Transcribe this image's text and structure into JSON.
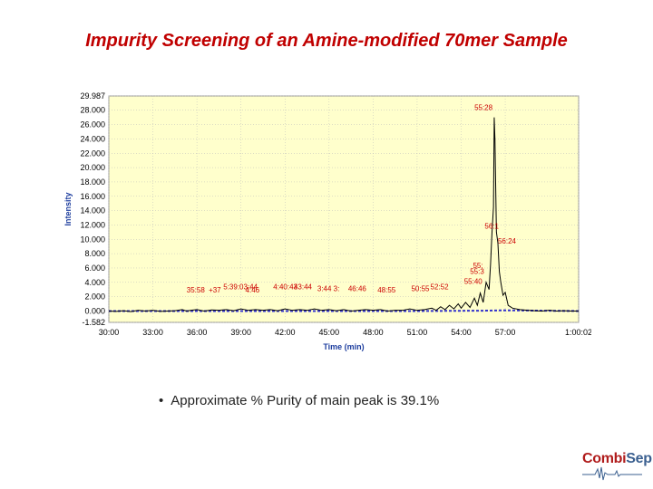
{
  "slide": {
    "title": "Impurity Screening of an Amine-modified 70mer Sample",
    "bullet": "Approximate % Purity of main peak is 39.1%"
  },
  "logo": {
    "brand_part1": "Combi",
    "brand_part2": "Sep",
    "colors": {
      "primary": "#b01c1c",
      "secondary": "#3a5f8f"
    }
  },
  "chart_data": {
    "type": "line",
    "title": "",
    "xlabel": "Time (min)",
    "ylabel": "Intensity",
    "xlim": [
      30,
      62
    ],
    "ylim": [
      -1.582,
      29.987
    ],
    "x_tick_values": [
      30,
      33,
      36,
      39,
      42,
      45,
      48,
      51,
      54,
      57,
      62
    ],
    "x_tick_labels": [
      "30:00",
      "33:00",
      "36:00",
      "39:00",
      "42:00",
      "45:00",
      "48:00",
      "51:00",
      "54:00",
      "57:00",
      "1:00:02"
    ],
    "y_tick_values": [
      29.987,
      28,
      26,
      24,
      22,
      20,
      18,
      16,
      14,
      12,
      10,
      8,
      6,
      4,
      2,
      0,
      -1.582
    ],
    "y_tick_labels": [
      "29.987",
      "28.000",
      "26.000",
      "24.000",
      "22.000",
      "20.000",
      "18.000",
      "16.000",
      "14.000",
      "12.000",
      "10.000",
      "8.000",
      "6.000",
      "4.000",
      "2.000",
      "0.000",
      "-1.582"
    ],
    "grid": true,
    "colors": {
      "plot_bg": "#ffffcc",
      "grid": "#bbbbbb",
      "trace": "#000000",
      "baseline": "#3333cc",
      "annotation": "#cc0000"
    },
    "series": [
      {
        "values": [
          [
            30.0,
            0.0
          ],
          [
            30.5,
            -0.05
          ],
          [
            31.0,
            0.05
          ],
          [
            31.5,
            -0.08
          ],
          [
            32.0,
            0.1
          ],
          [
            32.5,
            0.0
          ],
          [
            33.0,
            0.1
          ],
          [
            33.5,
            -0.05
          ],
          [
            34.0,
            0.0
          ],
          [
            34.5,
            0.05
          ],
          [
            35.0,
            0.2
          ],
          [
            35.3,
            0.0
          ],
          [
            35.6,
            0.1
          ],
          [
            36.0,
            0.2
          ],
          [
            36.5,
            0.0
          ],
          [
            37.0,
            0.15
          ],
          [
            37.5,
            0.1
          ],
          [
            38.0,
            0.2
          ],
          [
            38.5,
            0.05
          ],
          [
            39.0,
            0.3
          ],
          [
            39.5,
            0.1
          ],
          [
            40.0,
            0.2
          ],
          [
            40.5,
            0.1
          ],
          [
            41.0,
            0.2
          ],
          [
            41.5,
            0.05
          ],
          [
            42.0,
            0.3
          ],
          [
            42.5,
            0.1
          ],
          [
            43.0,
            0.2
          ],
          [
            43.5,
            0.1
          ],
          [
            44.0,
            0.3
          ],
          [
            44.5,
            0.1
          ],
          [
            45.0,
            0.2
          ],
          [
            45.5,
            0.05
          ],
          [
            46.0,
            0.2
          ],
          [
            46.5,
            0.0
          ],
          [
            47.0,
            0.1
          ],
          [
            47.5,
            0.2
          ],
          [
            48.0,
            0.1
          ],
          [
            48.5,
            0.2
          ],
          [
            49.0,
            0.0
          ],
          [
            49.5,
            0.1
          ],
          [
            50.0,
            0.1
          ],
          [
            50.5,
            0.3
          ],
          [
            51.0,
            0.1
          ],
          [
            51.5,
            0.2
          ],
          [
            52.0,
            0.4
          ],
          [
            52.3,
            0.1
          ],
          [
            52.6,
            0.6
          ],
          [
            52.9,
            0.2
          ],
          [
            53.2,
            0.8
          ],
          [
            53.5,
            0.3
          ],
          [
            53.8,
            1.0
          ],
          [
            54.0,
            0.4
          ],
          [
            54.3,
            1.2
          ],
          [
            54.6,
            0.5
          ],
          [
            54.9,
            1.8
          ],
          [
            55.1,
            0.8
          ],
          [
            55.3,
            2.5
          ],
          [
            55.5,
            1.2
          ],
          [
            55.7,
            4.0
          ],
          [
            55.9,
            3.0
          ],
          [
            56.0,
            6.5
          ],
          [
            56.1,
            11.0
          ],
          [
            56.2,
            14.5
          ],
          [
            56.25,
            27.0
          ],
          [
            56.3,
            24.0
          ],
          [
            56.4,
            11.0
          ],
          [
            56.5,
            9.5
          ],
          [
            56.6,
            5.5
          ],
          [
            56.7,
            4.0
          ],
          [
            56.85,
            2.2
          ],
          [
            57.0,
            2.6
          ],
          [
            57.2,
            0.8
          ],
          [
            57.5,
            0.4
          ],
          [
            58.0,
            0.2
          ],
          [
            58.5,
            0.1
          ],
          [
            59.0,
            0.05
          ],
          [
            59.5,
            0.0
          ],
          [
            60.0,
            0.1
          ],
          [
            60.5,
            0.0
          ],
          [
            61.0,
            0.05
          ],
          [
            61.5,
            0.0
          ],
          [
            62.0,
            0.0
          ]
        ]
      },
      {
        "values": [
          [
            30.0,
            0.0
          ],
          [
            51.0,
            0.0
          ],
          [
            55.5,
            0.05
          ],
          [
            57.0,
            0.1
          ],
          [
            62.0,
            0.0
          ]
        ]
      }
    ],
    "annotations": [
      {
        "text": "55:28",
        "x": 54.9,
        "y": 28.0
      },
      {
        "text": "56:1",
        "x": 55.6,
        "y": 11.5
      },
      {
        "text": "56:24",
        "x": 56.5,
        "y": 9.4
      },
      {
        "text": "55:",
        "x": 54.8,
        "y": 6.0
      },
      {
        "text": "55:3",
        "x": 54.6,
        "y": 5.2
      },
      {
        "text": "55:40",
        "x": 54.2,
        "y": 3.8
      },
      {
        "text": "35:58",
        "x": 35.3,
        "y": 2.6
      },
      {
        "text": "+37",
        "x": 36.8,
        "y": 2.6
      },
      {
        "text": "5:39:03:44",
        "x": 37.8,
        "y": 3.0
      },
      {
        "text": "4:46",
        "x": 39.3,
        "y": 2.6
      },
      {
        "text": "4:40:43",
        "x": 41.2,
        "y": 3.0
      },
      {
        "text": "43:44",
        "x": 42.6,
        "y": 3.0
      },
      {
        "text": "3:44",
        "x": 44.2,
        "y": 2.8
      },
      {
        "text": "3:",
        "x": 45.3,
        "y": 2.8
      },
      {
        "text": "46:46",
        "x": 46.3,
        "y": 2.8
      },
      {
        "text": "48:55",
        "x": 48.3,
        "y": 2.6
      },
      {
        "text": "50:55",
        "x": 50.6,
        "y": 2.8
      },
      {
        "text": "52:52",
        "x": 51.9,
        "y": 3.0
      }
    ]
  }
}
